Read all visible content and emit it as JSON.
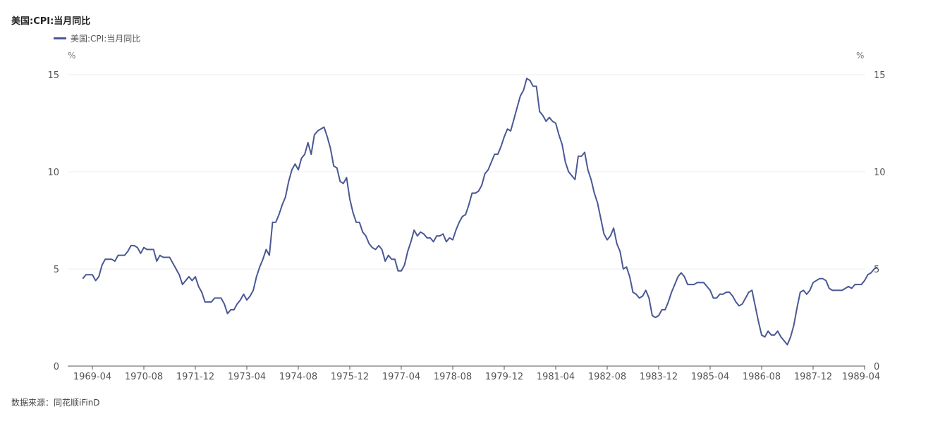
{
  "title": "美国:CPI:当月同比",
  "legend": {
    "label": "美国:CPI:当月同比"
  },
  "source": "数据来源：同花顺iFinD",
  "chart_data": {
    "type": "line",
    "title": "美国:CPI:当月同比",
    "y_unit_left": "%",
    "y_unit_right": "%",
    "ylim": [
      0,
      15
    ],
    "yticks": [
      "0",
      "5",
      "10",
      "15"
    ],
    "xticks": [
      "1969-04",
      "1970-08",
      "1971-12",
      "1973-04",
      "1974-08",
      "1975-12",
      "1977-04",
      "1978-08",
      "1979-12",
      "1981-04",
      "1982-08",
      "1983-12",
      "1985-04",
      "1986-08",
      "1987-12",
      "1989-04"
    ],
    "x_start": "1969-01",
    "grid": true,
    "legend_position": "top-left",
    "line_color": "#4a5894",
    "series": [
      {
        "name": "美国:CPI:当月同比",
        "values": [
          4.5,
          4.7,
          4.7,
          4.7,
          4.4,
          4.6,
          5.2,
          5.5,
          5.5,
          5.5,
          5.4,
          5.7,
          5.7,
          5.7,
          5.9,
          6.2,
          6.2,
          6.1,
          5.8,
          6.1,
          6.0,
          6.0,
          6.0,
          5.4,
          5.7,
          5.6,
          5.6,
          5.6,
          5.3,
          5.0,
          4.7,
          4.2,
          4.4,
          4.6,
          4.4,
          4.6,
          4.1,
          3.8,
          3.3,
          3.3,
          3.3,
          3.5,
          3.5,
          3.5,
          3.2,
          2.7,
          2.9,
          2.9,
          3.2,
          3.4,
          3.7,
          3.4,
          3.6,
          3.9,
          4.6,
          5.1,
          5.5,
          6.0,
          5.7,
          7.4,
          7.4,
          7.8,
          8.3,
          8.7,
          9.5,
          10.1,
          10.4,
          10.1,
          10.7,
          10.9,
          11.5,
          10.9,
          11.9,
          12.1,
          12.2,
          12.3,
          11.8,
          11.2,
          10.3,
          10.2,
          9.5,
          9.4,
          9.7,
          8.6,
          7.9,
          7.4,
          7.4,
          6.9,
          6.7,
          6.3,
          6.1,
          6.0,
          6.2,
          6.0,
          5.4,
          5.7,
          5.5,
          5.5,
          4.9,
          4.9,
          5.2,
          5.9,
          6.4,
          7.0,
          6.7,
          6.9,
          6.8,
          6.6,
          6.6,
          6.4,
          6.7,
          6.7,
          6.8,
          6.4,
          6.6,
          6.5,
          7.0,
          7.4,
          7.7,
          7.8,
          8.3,
          8.9,
          8.9,
          9.0,
          9.3,
          9.9,
          10.1,
          10.5,
          10.9,
          10.9,
          11.3,
          11.8,
          12.2,
          12.1,
          12.7,
          13.3,
          13.9,
          14.2,
          14.8,
          14.7,
          14.4,
          14.4,
          13.1,
          12.9,
          12.6,
          12.8,
          12.6,
          12.5,
          11.9,
          11.4,
          10.5,
          10.0,
          9.8,
          9.6,
          10.8,
          10.8,
          11.0,
          10.1,
          9.6,
          8.9,
          8.4,
          7.6,
          6.8,
          6.5,
          6.7,
          7.1,
          6.3,
          5.9,
          5.0,
          5.1,
          4.6,
          3.8,
          3.7,
          3.5,
          3.6,
          3.9,
          3.5,
          2.6,
          2.5,
          2.6,
          2.9,
          2.9,
          3.3,
          3.8,
          4.2,
          4.6,
          4.8,
          4.6,
          4.2,
          4.2,
          4.2,
          4.3,
          4.3,
          4.3,
          4.1,
          3.9,
          3.5,
          3.5,
          3.7,
          3.7,
          3.8,
          3.8,
          3.6,
          3.3,
          3.1,
          3.2,
          3.5,
          3.8,
          3.9,
          3.1,
          2.3,
          1.6,
          1.5,
          1.8,
          1.6,
          1.6,
          1.8,
          1.5,
          1.3,
          1.1,
          1.5,
          2.1,
          3.0,
          3.8,
          3.9,
          3.7,
          3.9,
          4.3,
          4.4,
          4.5,
          4.5,
          4.4,
          4.0,
          3.9,
          3.9,
          3.9,
          3.9,
          4.0,
          4.1,
          4.0,
          4.2,
          4.2,
          4.2,
          4.4,
          4.7,
          4.8,
          5.0,
          5.1
        ]
      }
    ]
  }
}
